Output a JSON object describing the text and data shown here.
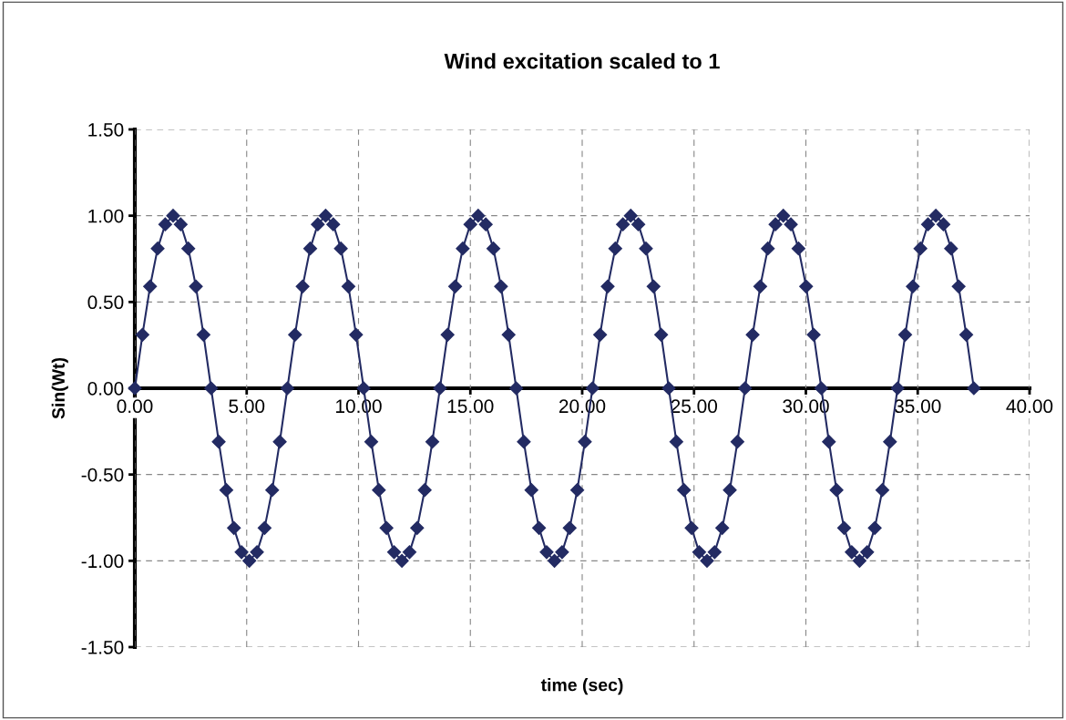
{
  "chart_data": {
    "type": "line",
    "title": "Wind excitation scaled to 1",
    "xlabel": "time (sec)",
    "ylabel": "Sin(Wt)",
    "x": [
      0,
      0.34,
      0.68,
      1.02,
      1.36,
      1.71,
      2.05,
      2.39,
      2.73,
      3.07,
      3.41,
      3.75,
      4.09,
      4.43,
      4.77,
      5.12,
      5.46,
      5.8,
      6.14,
      6.48,
      6.82,
      7.16,
      7.5,
      7.84,
      8.18,
      8.53,
      8.87,
      9.21,
      9.55,
      9.89,
      10.23,
      10.57,
      10.91,
      11.25,
      11.59,
      11.94,
      12.28,
      12.62,
      12.96,
      13.3,
      13.64,
      13.98,
      14.32,
      14.66,
      15.0,
      15.35,
      15.69,
      16.03,
      16.37,
      16.71,
      17.05,
      17.39,
      17.73,
      18.07,
      18.41,
      18.76,
      19.1,
      19.44,
      19.78,
      20.12,
      20.46,
      20.8,
      21.14,
      21.48,
      21.82,
      22.17,
      22.51,
      22.85,
      23.19,
      23.53,
      23.87,
      24.21,
      24.55,
      24.89,
      25.23,
      25.58,
      25.92,
      26.26,
      26.6,
      26.94,
      27.28,
      27.62,
      27.96,
      28.3,
      28.64,
      28.99,
      29.33,
      29.67,
      30.01,
      30.35,
      30.69,
      31.03,
      31.37,
      31.71,
      32.05,
      32.4,
      32.74,
      33.08,
      33.42,
      33.76,
      34.1,
      34.44,
      34.78,
      35.12,
      35.46,
      35.81,
      36.15,
      36.49,
      36.83,
      37.17,
      37.51
    ],
    "series": [
      {
        "color": "#232b63",
        "values": [
          0,
          0.31,
          0.59,
          0.81,
          0.95,
          1,
          0.95,
          0.81,
          0.59,
          0.31,
          0,
          -0.31,
          -0.59,
          -0.81,
          -0.95,
          -1,
          -0.95,
          -0.81,
          -0.59,
          -0.31,
          0,
          0.31,
          0.59,
          0.81,
          0.95,
          1,
          0.95,
          0.81,
          0.59,
          0.31,
          0,
          -0.31,
          -0.59,
          -0.81,
          -0.95,
          -1,
          -0.95,
          -0.81,
          -0.59,
          -0.31,
          0,
          0.31,
          0.59,
          0.81,
          0.95,
          1,
          0.95,
          0.81,
          0.59,
          0.31,
          0,
          -0.31,
          -0.59,
          -0.81,
          -0.95,
          -1,
          -0.95,
          -0.81,
          -0.59,
          -0.31,
          0,
          0.31,
          0.59,
          0.81,
          0.95,
          1,
          0.95,
          0.81,
          0.59,
          0.31,
          0,
          -0.31,
          -0.59,
          -0.81,
          -0.95,
          -1,
          -0.95,
          -0.81,
          -0.59,
          -0.31,
          0,
          0.31,
          0.59,
          0.81,
          0.95,
          1,
          0.95,
          0.81,
          0.59,
          0.31,
          0,
          -0.31,
          -0.59,
          -0.81,
          -0.95,
          -1,
          -0.95,
          -0.81,
          -0.59,
          -0.31,
          0,
          0.31,
          0.59,
          0.81,
          0.95,
          1,
          0.95,
          0.81,
          0.59,
          0.31,
          0
        ]
      }
    ],
    "xlim": [
      0,
      40
    ],
    "xticks": [
      {
        "value": 0,
        "label": "0.00"
      },
      {
        "value": 5,
        "label": "5.00"
      },
      {
        "value": 10,
        "label": "10.00"
      },
      {
        "value": 15,
        "label": "15.00"
      },
      {
        "value": 20,
        "label": "20.00"
      },
      {
        "value": 25,
        "label": "25.00"
      },
      {
        "value": 30,
        "label": "30.00"
      },
      {
        "value": 35,
        "label": "35.00"
      },
      {
        "value": 40,
        "label": "40.00"
      }
    ],
    "ylim": [
      -1.5,
      1.5
    ],
    "yticks": [
      {
        "value": -1.5,
        "label": "-1.50"
      },
      {
        "value": -1,
        "label": "-1.00"
      },
      {
        "value": -0.5,
        "label": "-0.50"
      },
      {
        "value": 0,
        "label": "0.00"
      },
      {
        "value": 0.5,
        "label": "0.50"
      },
      {
        "value": 1,
        "label": "1.00"
      },
      {
        "value": 1.5,
        "label": "1.50"
      }
    ],
    "grid": true,
    "marker": "diamond",
    "line_style": "solid"
  }
}
